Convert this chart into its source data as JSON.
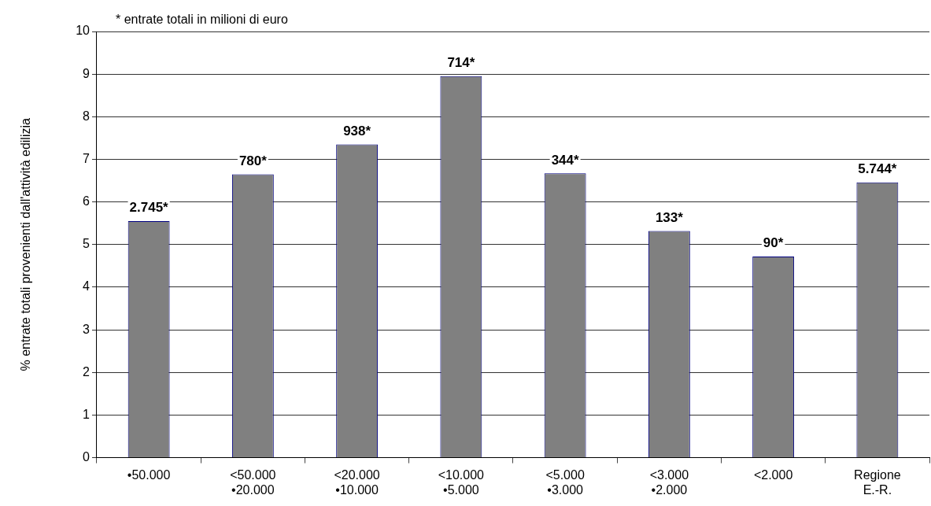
{
  "chart_data": {
    "type": "bar",
    "ylabel": "% entrate totali provenienti dall'attività edilizia",
    "annotations": [
      "* entrate totali in milioni di euro",
      {
        "text": "2.745*",
        "x": "•50.000",
        "y": 5.55
      },
      {
        "text": "780*",
        "x": "<50.000\n•20.000",
        "y": 6.65
      },
      {
        "text": "938*",
        "x": "<20.000\n•10.000",
        "y": 7.35
      },
      {
        "text": "714*",
        "x": "<10.000\n•5.000",
        "y": 8.95
      },
      {
        "text": "344*",
        "x": "<5.000\n•3.000",
        "y": 6.67
      },
      {
        "text": "133*",
        "x": "<3.000\n•2.000",
        "y": 5.32
      },
      {
        "text": "90*",
        "x": "<2.000",
        "y": 4.72
      },
      {
        "text": "5.744*",
        "x": "Regione\nE.-R.",
        "y": 6.46
      }
    ],
    "categories": [
      "•50.000",
      "<50.000\n•20.000",
      "<20.000\n•10.000",
      "<10.000\n•5.000",
      "<5.000\n•3.000",
      "<3.000\n•2.000",
      "<2.000",
      "Regione\nE.-R."
    ],
    "values": [
      5.55,
      6.65,
      7.35,
      8.95,
      6.67,
      5.32,
      4.72,
      6.46
    ],
    "color": "#808080",
    "ylim": [
      0,
      10
    ],
    "yticks": [
      0,
      1,
      2,
      3,
      4,
      5,
      6,
      7,
      8,
      9,
      10
    ],
    "grid": "y",
    "legend": false
  }
}
